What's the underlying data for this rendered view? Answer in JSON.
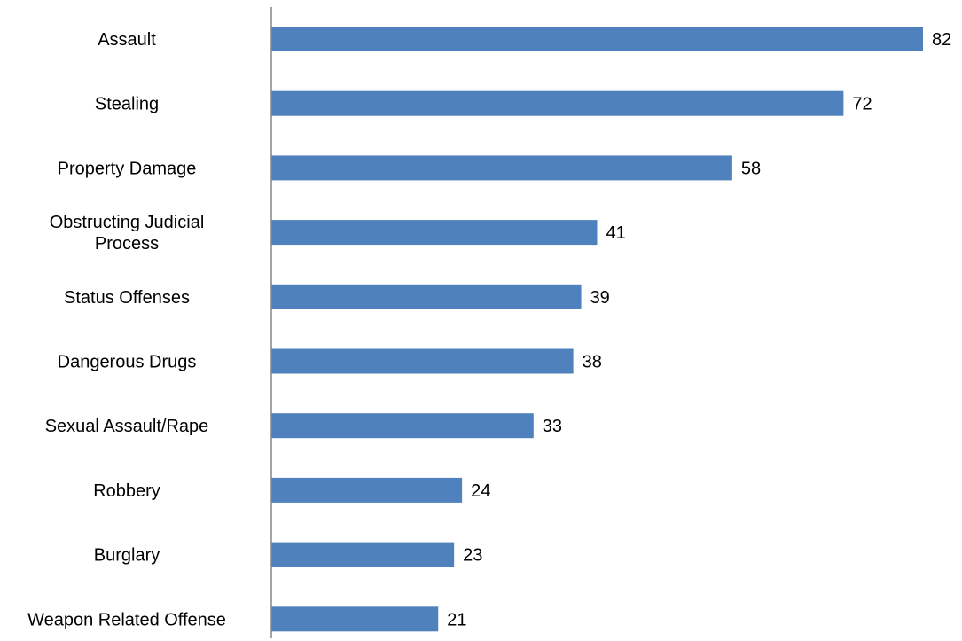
{
  "chart_data": {
    "type": "bar",
    "orientation": "horizontal",
    "categories": [
      "Assault",
      "Stealing",
      "Property Damage",
      "Obstructing Judicial Process",
      "Status Offenses",
      "Dangerous Drugs",
      "Sexual Assault/Rape",
      "Robbery",
      "Burglary",
      "Weapon Related Offense"
    ],
    "category_lines": [
      [
        "Assault"
      ],
      [
        "Stealing"
      ],
      [
        "Property Damage"
      ],
      [
        "Obstructing Judicial",
        "Process"
      ],
      [
        "Status Offenses"
      ],
      [
        "Dangerous Drugs"
      ],
      [
        "Sexual Assault/Rape"
      ],
      [
        "Robbery"
      ],
      [
        "Burglary"
      ],
      [
        "Weapon Related Offense"
      ]
    ],
    "values": [
      82,
      72,
      58,
      41,
      39,
      38,
      33,
      24,
      23,
      21
    ],
    "xlim": [
      0,
      82
    ],
    "grid": false,
    "data_labels": true,
    "bar_color": "#4f81bd",
    "axis_color": "#868686"
  }
}
